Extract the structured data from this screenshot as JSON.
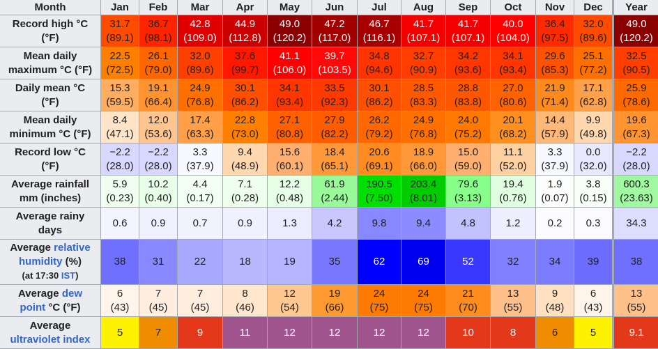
{
  "header": {
    "label": "Month",
    "months": [
      "Jan",
      "Feb",
      "Mar",
      "Apr",
      "May",
      "Jun",
      "Jul",
      "Aug",
      "Sep",
      "Oct",
      "Nov",
      "Dec",
      "Year"
    ]
  },
  "rows": [
    {
      "name": "record-high",
      "label": [
        {
          "t": "Record high °C"
        },
        {
          "t": "(°F)",
          "br": true
        }
      ],
      "cells": [
        {
          "c": "31.7",
          "f": "(89.1)",
          "bg": "#ff4b00"
        },
        {
          "c": "36.7",
          "f": "(98.1)",
          "bg": "#ff2400"
        },
        {
          "c": "42.8",
          "f": "(109.0)",
          "bg": "#e00000",
          "fg": "#ffffff"
        },
        {
          "c": "44.9",
          "f": "(112.8)",
          "bg": "#cc0000",
          "fg": "#ffffff"
        },
        {
          "c": "49.0",
          "f": "(120.2)",
          "bg": "#8b0000",
          "fg": "#ffffff"
        },
        {
          "c": "47.2",
          "f": "(117.0)",
          "bg": "#a30000",
          "fg": "#ffffff"
        },
        {
          "c": "46.7",
          "f": "(116.1)",
          "bg": "#a80000",
          "fg": "#ffffff"
        },
        {
          "c": "41.7",
          "f": "(107.1)",
          "bg": "#f50000",
          "fg": "#ffffff"
        },
        {
          "c": "41.7",
          "f": "(107.1)",
          "bg": "#f50000",
          "fg": "#ffffff"
        },
        {
          "c": "40.0",
          "f": "(104.0)",
          "bg": "#ff0000",
          "fg": "#ffffff"
        },
        {
          "c": "36.4",
          "f": "(97.5)",
          "bg": "#ff2a00"
        },
        {
          "c": "32.0",
          "f": "(89.6)",
          "bg": "#ff4a00"
        },
        {
          "c": "49.0",
          "f": "(120.2)",
          "bg": "#8b0000",
          "fg": "#ffffff"
        }
      ]
    },
    {
      "name": "mean-daily-max",
      "label": [
        {
          "t": "Mean daily"
        },
        {
          "t": "maximum °C (°F)",
          "br": true
        }
      ],
      "cells": [
        {
          "c": "22.5",
          "f": "(72.5)",
          "bg": "#ff8000"
        },
        {
          "c": "26.1",
          "f": "(79.0)",
          "bg": "#ff6600"
        },
        {
          "c": "32.0",
          "f": "(89.6)",
          "bg": "#ff4000"
        },
        {
          "c": "37.6",
          "f": "(99.7)",
          "bg": "#ff1800"
        },
        {
          "c": "41.1",
          "f": "(106.0)",
          "bg": "#ff0000",
          "fg": "#ffffff"
        },
        {
          "c": "39.7",
          "f": "(103.5)",
          "bg": "#ff0808",
          "fg": "#ffffff"
        },
        {
          "c": "34.8",
          "f": "(94.6)",
          "bg": "#ff3400"
        },
        {
          "c": "32.7",
          "f": "(90.9)",
          "bg": "#ff3e00"
        },
        {
          "c": "34.2",
          "f": "(93.6)",
          "bg": "#ff3600"
        },
        {
          "c": "34.1",
          "f": "(93.4)",
          "bg": "#ff3600"
        },
        {
          "c": "29.6",
          "f": "(85.3)",
          "bg": "#ff5200"
        },
        {
          "c": "25.1",
          "f": "(77.2)",
          "bg": "#ff7000"
        },
        {
          "c": "32.5",
          "f": "(90.5)",
          "bg": "#ff3f00"
        }
      ]
    },
    {
      "name": "daily-mean",
      "label": [
        {
          "t": "Daily mean °C"
        },
        {
          "t": "(°F)",
          "br": true
        }
      ],
      "cells": [
        {
          "c": "15.3",
          "f": "(59.5)",
          "bg": "#ffad60"
        },
        {
          "c": "19.1",
          "f": "(66.4)",
          "bg": "#ff9330"
        },
        {
          "c": "24.9",
          "f": "(76.8)",
          "bg": "#ff7000"
        },
        {
          "c": "30.1",
          "f": "(86.2)",
          "bg": "#ff4f00"
        },
        {
          "c": "34.1",
          "f": "(93.4)",
          "bg": "#ff3600"
        },
        {
          "c": "33.5",
          "f": "(92.3)",
          "bg": "#ff3a00"
        },
        {
          "c": "30.1",
          "f": "(86.2)",
          "bg": "#ff4f00"
        },
        {
          "c": "28.5",
          "f": "(83.3)",
          "bg": "#ff5900"
        },
        {
          "c": "28.8",
          "f": "(83.8)",
          "bg": "#ff5700"
        },
        {
          "c": "27.0",
          "f": "(80.6)",
          "bg": "#ff6200"
        },
        {
          "c": "21.9",
          "f": "(71.4)",
          "bg": "#ff8a1c"
        },
        {
          "c": "17.1",
          "f": "(62.8)",
          "bg": "#ffa04a"
        },
        {
          "c": "25.9",
          "f": "(78.6)",
          "bg": "#ff6a00"
        }
      ]
    },
    {
      "name": "mean-daily-min",
      "label": [
        {
          "t": "Mean daily"
        },
        {
          "t": "minimum °C (°F)",
          "br": true
        }
      ],
      "cells": [
        {
          "c": "8.4",
          "f": "(47.1)",
          "bg": "#ffe4c8"
        },
        {
          "c": "12.0",
          "f": "(53.6)",
          "bg": "#ffc590"
        },
        {
          "c": "17.4",
          "f": "(63.3)",
          "bg": "#ffa048"
        },
        {
          "c": "22.8",
          "f": "(73.0)",
          "bg": "#ff8000"
        },
        {
          "c": "27.1",
          "f": "(80.8)",
          "bg": "#ff6000"
        },
        {
          "c": "27.9",
          "f": "(82.2)",
          "bg": "#ff5c00"
        },
        {
          "c": "26.2",
          "f": "(79.2)",
          "bg": "#ff6800"
        },
        {
          "c": "24.9",
          "f": "(76.8)",
          "bg": "#ff7000"
        },
        {
          "c": "24.0",
          "f": "(75.2)",
          "bg": "#ff7800"
        },
        {
          "c": "20.1",
          "f": "(68.2)",
          "bg": "#ff9020"
        },
        {
          "c": "14.4",
          "f": "(57.9)",
          "bg": "#ffb878"
        },
        {
          "c": "9.9",
          "f": "(49.8)",
          "bg": "#ffd8b0"
        },
        {
          "c": "19.6",
          "f": "(67.3)",
          "bg": "#ff9430"
        }
      ]
    },
    {
      "name": "record-low",
      "label": [
        {
          "t": "Record low °C"
        },
        {
          "t": "(°F)",
          "br": true
        }
      ],
      "cells": [
        {
          "c": "−2.2",
          "f": "(28.0)",
          "bg": "#d8d8ff"
        },
        {
          "c": "−2.2",
          "f": "(28.0)",
          "bg": "#d8d8ff"
        },
        {
          "c": "3.3",
          "f": "(37.9)",
          "bg": "#f8f8ff"
        },
        {
          "c": "9.4",
          "f": "(48.9)",
          "bg": "#ffd8b0"
        },
        {
          "c": "15.6",
          "f": "(60.1)",
          "bg": "#ffb070"
        },
        {
          "c": "18.4",
          "f": "(65.1)",
          "bg": "#ff9838"
        },
        {
          "c": "20.6",
          "f": "(69.1)",
          "bg": "#ff8c20"
        },
        {
          "c": "18.9",
          "f": "(66.0)",
          "bg": "#ff9838"
        },
        {
          "c": "15.0",
          "f": "(59.0)",
          "bg": "#ffb070"
        },
        {
          "c": "11.1",
          "f": "(52.0)",
          "bg": "#ffd0a0"
        },
        {
          "c": "3.3",
          "f": "(37.9)",
          "bg": "#f8f8ff"
        },
        {
          "c": "0.0",
          "f": "(32.0)",
          "bg": "#e8e8ff"
        },
        {
          "c": "−2.2",
          "f": "(28.0)",
          "bg": "#d8d8ff"
        }
      ]
    },
    {
      "name": "average-rainfall",
      "label": [
        {
          "t": "Average rainfall"
        },
        {
          "t": "mm (inches)",
          "br": true
        }
      ],
      "cells": [
        {
          "c": "5.9",
          "f": "(0.23)",
          "bg": "#f0fff0"
        },
        {
          "c": "10.2",
          "f": "(0.40)",
          "bg": "#e8ffe8"
        },
        {
          "c": "4.4",
          "f": "(0.17)",
          "bg": "#f2fff2"
        },
        {
          "c": "7.1",
          "f": "(0.28)",
          "bg": "#eeffee"
        },
        {
          "c": "12.2",
          "f": "(0.48)",
          "bg": "#e6ffe6"
        },
        {
          "c": "61.9",
          "f": "(2.44)",
          "bg": "#98fa98"
        },
        {
          "c": "190.5",
          "f": "(7.50)",
          "bg": "#00e000"
        },
        {
          "c": "203.4",
          "f": "(8.01)",
          "bg": "#00cc00"
        },
        {
          "c": "79.6",
          "f": "(3.13)",
          "bg": "#88ff88"
        },
        {
          "c": "19.4",
          "f": "(0.76)",
          "bg": "#e0ffe0"
        },
        {
          "c": "1.9",
          "f": "(0.07)",
          "bg": "#fcfffc"
        },
        {
          "c": "3.8",
          "f": "(0.15)",
          "bg": "#f8fff8"
        },
        {
          "c": "600.3",
          "f": "(23.63)",
          "bg": "#a0f8a0"
        }
      ]
    },
    {
      "name": "average-rainy-days",
      "label": [
        {
          "t": "Average rainy"
        },
        {
          "t": "days",
          "br": true
        }
      ],
      "cells": [
        {
          "c": "0.6",
          "bg": "#f4f4ff"
        },
        {
          "c": "0.9",
          "bg": "#f0f0ff"
        },
        {
          "c": "0.7",
          "bg": "#f2f2ff"
        },
        {
          "c": "0.9",
          "bg": "#f0f0ff"
        },
        {
          "c": "1.3",
          "bg": "#ececff"
        },
        {
          "c": "4.2",
          "bg": "#c8c8ff"
        },
        {
          "c": "9.8",
          "bg": "#8888ff"
        },
        {
          "c": "9.4",
          "bg": "#8c8cff"
        },
        {
          "c": "4.8",
          "bg": "#c2c2ff"
        },
        {
          "c": "1.2",
          "bg": "#eeeeff"
        },
        {
          "c": "0.2",
          "bg": "#fcfcff"
        },
        {
          "c": "0.3",
          "bg": "#fafaff"
        },
        {
          "c": "34.3",
          "bg": "#ddddff"
        }
      ]
    },
    {
      "name": "average-relative-humidity",
      "tall": true,
      "label": [
        {
          "t": "Average "
        },
        {
          "t": "relative",
          "link": true
        },
        {
          "t": "humidity",
          "link": true,
          "br": true
        },
        {
          "t": " (%)"
        },
        {
          "t": "(at 17:30 ",
          "br": true,
          "small": true
        },
        {
          "t": "IST",
          "link": true,
          "small": true
        },
        {
          "t": ")",
          "small": true
        }
      ],
      "cells": [
        {
          "c": "38",
          "bg": "#7070ff"
        },
        {
          "c": "31",
          "bg": "#8888ff"
        },
        {
          "c": "22",
          "bg": "#a8a8ff"
        },
        {
          "c": "18",
          "bg": "#b8b8ff"
        },
        {
          "c": "19",
          "bg": "#b4b4ff"
        },
        {
          "c": "35",
          "bg": "#7878ff"
        },
        {
          "c": "62",
          "bg": "#0000ff",
          "fg": "#ffffff"
        },
        {
          "c": "69",
          "bg": "#0000f0",
          "fg": "#ffffff"
        },
        {
          "c": "52",
          "bg": "#3838ff",
          "fg": "#ffffff"
        },
        {
          "c": "32",
          "bg": "#8080ff"
        },
        {
          "c": "34",
          "bg": "#7c7cff"
        },
        {
          "c": "39",
          "bg": "#6c6cff"
        },
        {
          "c": "38",
          "bg": "#7070ff"
        }
      ]
    },
    {
      "name": "average-dew-point",
      "label": [
        {
          "t": "Average "
        },
        {
          "t": "dew",
          "link": true
        },
        {
          "t": "point",
          "link": true,
          "br": true
        },
        {
          "t": " °C (°F)"
        }
      ],
      "cells": [
        {
          "c": "6",
          "f": "(43)",
          "bg": "#fff4ea"
        },
        {
          "c": "7",
          "f": "(45)",
          "bg": "#ffeedd"
        },
        {
          "c": "7",
          "f": "(45)",
          "bg": "#ffeedd"
        },
        {
          "c": "8",
          "f": "(46)",
          "bg": "#ffe6cc"
        },
        {
          "c": "12",
          "f": "(54)",
          "bg": "#ffc890"
        },
        {
          "c": "19",
          "f": "(66)",
          "bg": "#ff9a30"
        },
        {
          "c": "24",
          "f": "(75)",
          "bg": "#ff7a00"
        },
        {
          "c": "24",
          "f": "(75)",
          "bg": "#ff7a00"
        },
        {
          "c": "21",
          "f": "(70)",
          "bg": "#ff8c1c"
        },
        {
          "c": "13",
          "f": "(55)",
          "bg": "#ffc08a"
        },
        {
          "c": "9",
          "f": "(48)",
          "bg": "#ffe0c0"
        },
        {
          "c": "6",
          "f": "(43)",
          "bg": "#fff4ea"
        },
        {
          "c": "13",
          "f": "(55)",
          "bg": "#ffc08a"
        }
      ]
    },
    {
      "name": "average-uv-index",
      "label": [
        {
          "t": "Average"
        },
        {
          "t": "ultraviolet index",
          "link": true,
          "br": true
        }
      ],
      "cells": [
        {
          "c": "5",
          "bg": "#fff200"
        },
        {
          "c": "7",
          "bg": "#f08c00"
        },
        {
          "c": "9",
          "bg": "#e4381a",
          "fg": "#ffffff"
        },
        {
          "c": "11",
          "bg": "#a0558f",
          "fg": "#ffffff"
        },
        {
          "c": "12",
          "bg": "#a0558f",
          "fg": "#ffffff"
        },
        {
          "c": "12",
          "bg": "#a0558f",
          "fg": "#ffffff"
        },
        {
          "c": "12",
          "bg": "#a0558f",
          "fg": "#ffffff"
        },
        {
          "c": "12",
          "bg": "#a0558f",
          "fg": "#ffffff"
        },
        {
          "c": "10",
          "bg": "#e4381a",
          "fg": "#ffffff"
        },
        {
          "c": "8",
          "bg": "#e4381a",
          "fg": "#ffffff"
        },
        {
          "c": "6",
          "bg": "#f08c00"
        },
        {
          "c": "5",
          "bg": "#fff200"
        },
        {
          "c": "9.1",
          "bg": "#e4381a",
          "fg": "#ffffff"
        }
      ]
    }
  ]
}
